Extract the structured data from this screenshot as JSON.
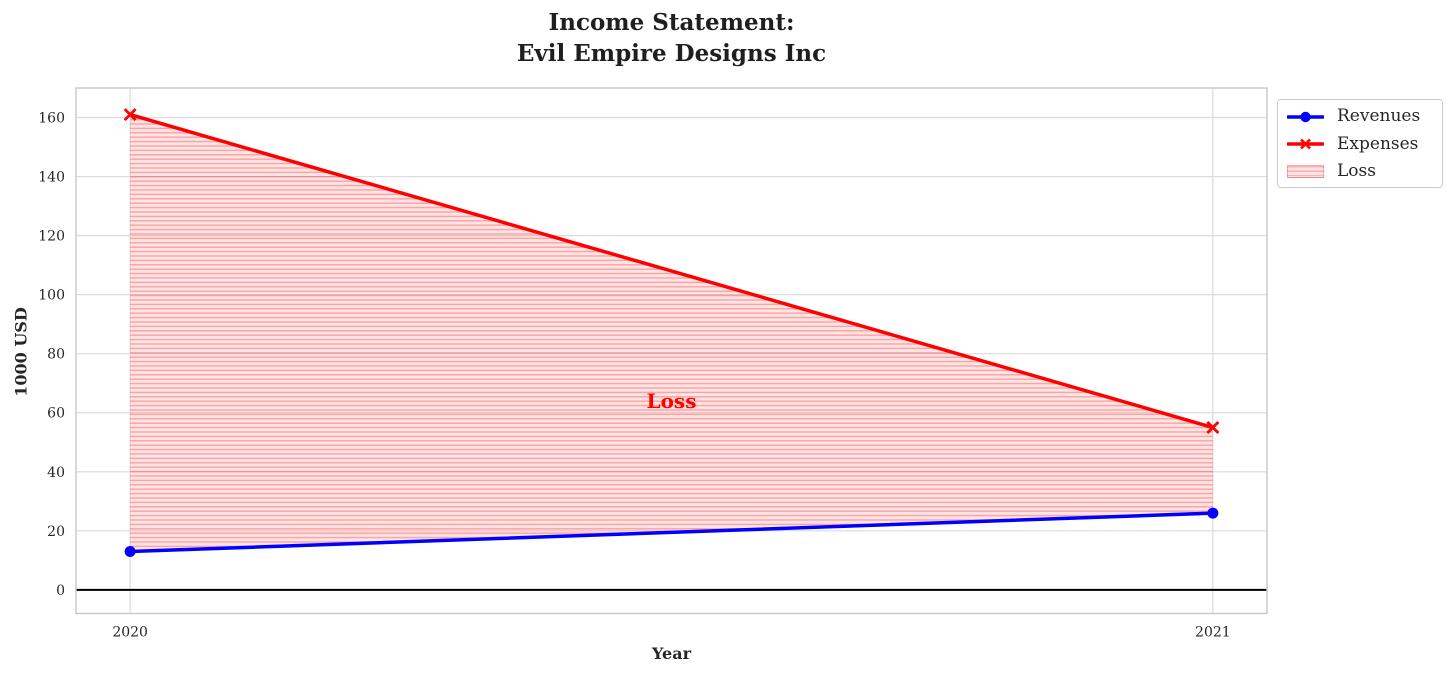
{
  "title": "Income Statement:\nEvil Empire Designs Inc",
  "legend": {
    "items": [
      {
        "label": "Revenues",
        "color": "#0000ff",
        "marker": "circle"
      },
      {
        "label": "Expenses",
        "color": "#ff0000",
        "marker": "x"
      },
      {
        "label": "Loss",
        "color": "#ff0000",
        "marker": "hatch-patch"
      }
    ]
  },
  "chart_data": {
    "type": "line",
    "title": "Income Statement:\nEvil Empire Designs Inc",
    "xlabel": "Year",
    "ylabel": "1000 USD",
    "x": [
      2020,
      2021
    ],
    "series": [
      {
        "name": "Revenues",
        "values": [
          13,
          26
        ],
        "color": "#0000ff",
        "marker": "circle"
      },
      {
        "name": "Expenses",
        "values": [
          161,
          55
        ],
        "color": "#ff0000",
        "marker": "x"
      }
    ],
    "fill_between": {
      "label": "Loss",
      "upper": "Expenses",
      "lower": "Revenues",
      "hatch": "horizontal",
      "color": "#ff0000"
    },
    "annotation": {
      "text": "Loss",
      "x": 2020.5,
      "y": 64,
      "color": "#ff0000"
    },
    "zero_line": {
      "y": 0,
      "color": "#000000"
    },
    "xticks": [
      "2020",
      "2021"
    ],
    "xtick_values": [
      2020,
      2021
    ],
    "yticks": [
      0,
      20,
      40,
      60,
      80,
      100,
      120,
      140,
      160
    ],
    "xlim": [
      2019.95,
      2021.05
    ],
    "ylim": [
      -8,
      170
    ],
    "grid": true,
    "grid_color": "#dcdcdc",
    "border_color": "#c8c8c8",
    "legend_position": "upper-right-outside"
  }
}
